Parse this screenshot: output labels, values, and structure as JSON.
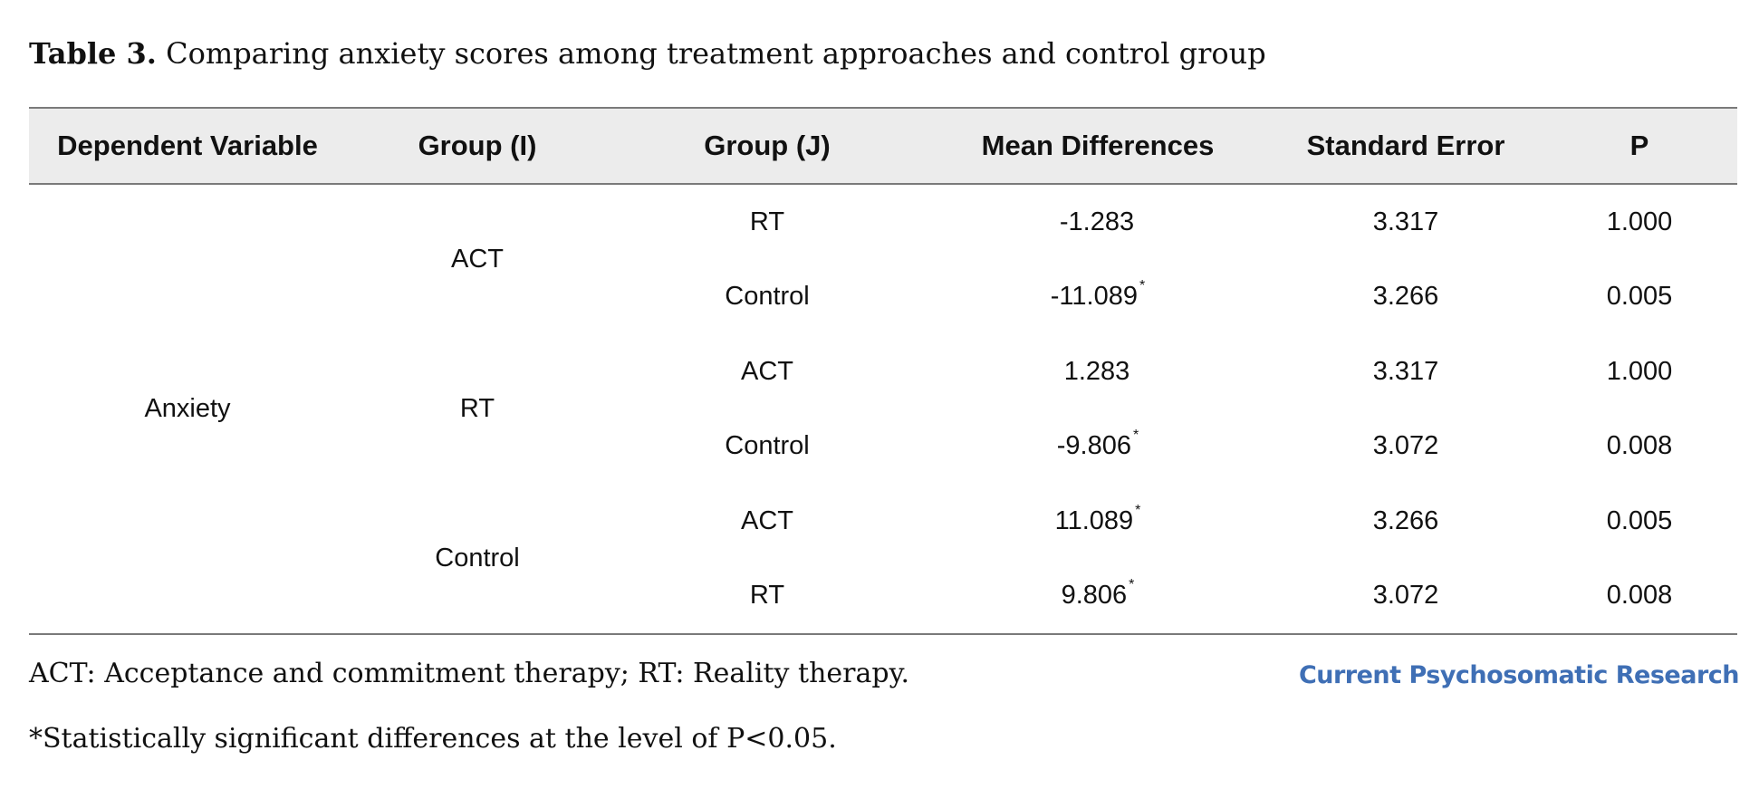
{
  "caption": {
    "label": "Table 3.",
    "text": " Comparing anxiety scores among treatment approaches and control group"
  },
  "table": {
    "headers": [
      "Dependent Variable",
      "Group (I)",
      "Group (J)",
      "Mean Differences",
      "Standard Error",
      "P"
    ],
    "dependent_variable": "Anxiety",
    "groups": [
      {
        "group_i": "ACT",
        "rows": [
          {
            "group_j": "RT",
            "mean_diff": "-1.283",
            "sig": "",
            "se": "3.317",
            "p": "1.000"
          },
          {
            "group_j": "Control",
            "mean_diff": "-11.089",
            "sig": "*",
            "se": "3.266",
            "p": "0.005"
          }
        ]
      },
      {
        "group_i": "RT",
        "rows": [
          {
            "group_j": "ACT",
            "mean_diff": "1.283",
            "sig": "",
            "se": "3.317",
            "p": "1.000"
          },
          {
            "group_j": "Control",
            "mean_diff": "-9.806",
            "sig": "*",
            "se": "3.072",
            "p": "0.008"
          }
        ]
      },
      {
        "group_i": "Control",
        "rows": [
          {
            "group_j": "ACT",
            "mean_diff": "11.089",
            "sig": "*",
            "se": "3.266",
            "p": "0.005"
          },
          {
            "group_j": "RT",
            "mean_diff": "9.806",
            "sig": "*",
            "se": "3.072",
            "p": "0.008"
          }
        ]
      }
    ]
  },
  "footnotes": {
    "abbreviations": "ACT: Acceptance and commitment therapy; RT: Reality therapy.",
    "significance": "*Statistically significant differences at the level of P<0.05."
  },
  "logo": {
    "text": "Current Psychosomatic Research",
    "color": "#3f6fb5"
  }
}
